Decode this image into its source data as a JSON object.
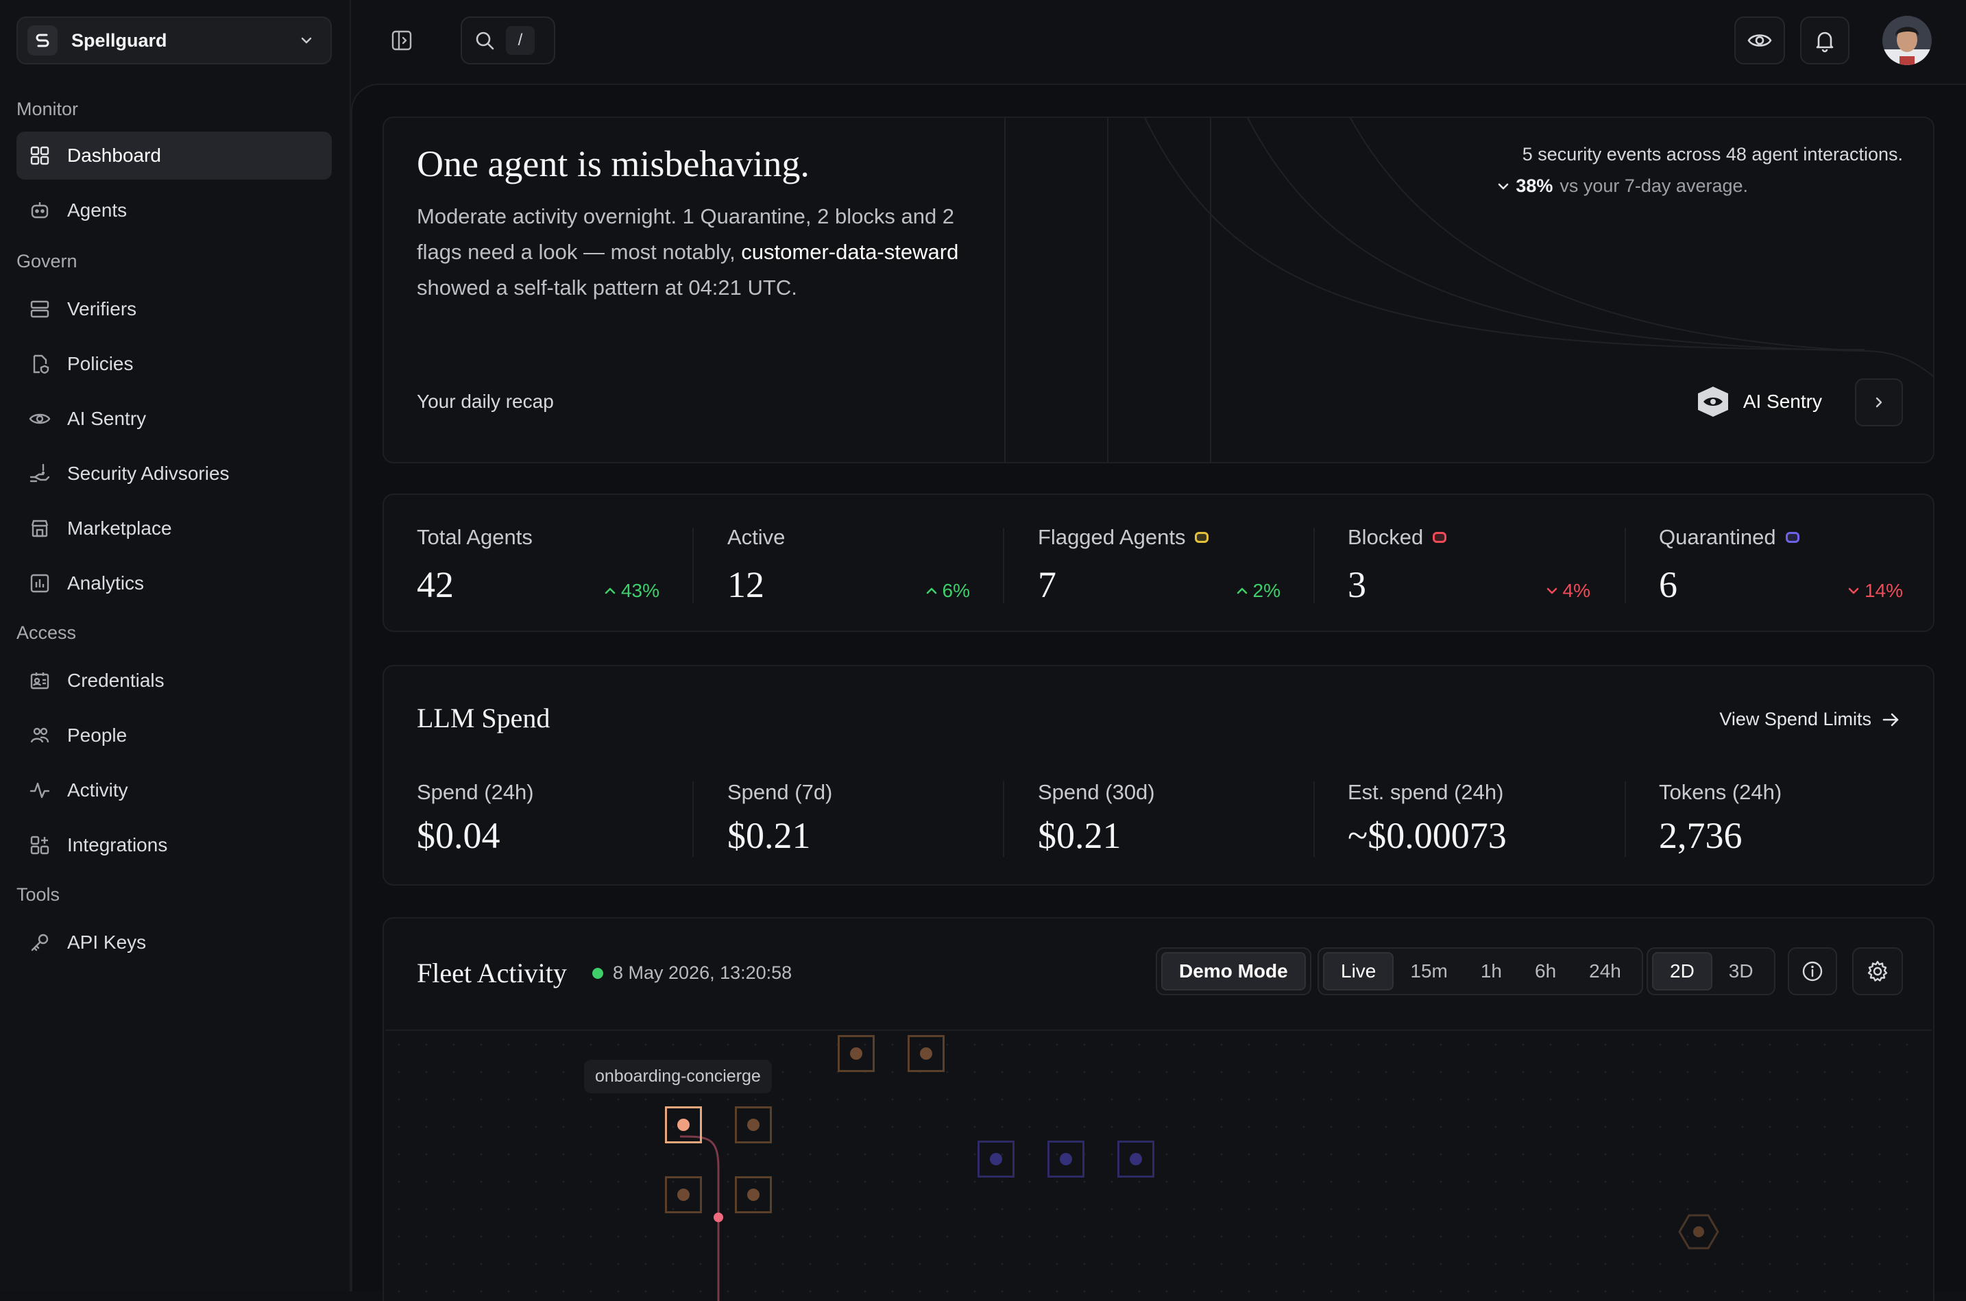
{
  "org": {
    "name": "Spellguard"
  },
  "sidebar": {
    "sections": [
      {
        "title": "Monitor",
        "items": [
          {
            "label": "Dashboard",
            "icon": "grid-icon",
            "active": true
          },
          {
            "label": "Agents",
            "icon": "robot-icon"
          }
        ]
      },
      {
        "title": "Govern",
        "items": [
          {
            "label": "Verifiers",
            "icon": "server-icon"
          },
          {
            "label": "Policies",
            "icon": "document-shield-icon"
          },
          {
            "label": "AI Sentry",
            "icon": "eye-icon"
          },
          {
            "label": "Security Adivsories",
            "icon": "hand-alert-icon"
          },
          {
            "label": "Marketplace",
            "icon": "store-icon"
          },
          {
            "label": "Analytics",
            "icon": "bar-chart-icon"
          }
        ]
      },
      {
        "title": "Access",
        "items": [
          {
            "label": "Credentials",
            "icon": "id-card-icon"
          },
          {
            "label": "People",
            "icon": "people-icon"
          },
          {
            "label": "Activity",
            "icon": "activity-icon"
          },
          {
            "label": "Integrations",
            "icon": "apps-icon"
          }
        ]
      },
      {
        "title": "Tools",
        "items": [
          {
            "label": "API Keys",
            "icon": "key-icon"
          }
        ]
      }
    ]
  },
  "topbar": {
    "search_shortcut": "/"
  },
  "hero": {
    "title": "One agent is misbehaving.",
    "body_pre": "Moderate activity overnight. 1 Quarantine, 2 blocks and 2 flags need a look — most notably, ",
    "body_highlight": "customer-data-steward",
    "body_post": " showed a self-talk pattern at 04:21 UTC.",
    "recap_label": "Your daily recap",
    "summary_line": "5 security events across 48 agent interactions.",
    "delta_pct": "38%",
    "delta_text": "vs your 7-day average.",
    "sentry_label": "AI Sentry"
  },
  "stats": [
    {
      "label": "Total Agents",
      "value": "42",
      "delta": "43%",
      "direction": "up"
    },
    {
      "label": "Active",
      "value": "12",
      "delta": "6%",
      "direction": "up"
    },
    {
      "label": "Flagged Agents",
      "value": "7",
      "delta": "2%",
      "direction": "up",
      "pill_color": "#e3c13a"
    },
    {
      "label": "Blocked",
      "value": "3",
      "delta": "4%",
      "direction": "down",
      "pill_color": "#ef4b57"
    },
    {
      "label": "Quarantined",
      "value": "6",
      "delta": "14%",
      "direction": "down",
      "pill_color": "#6f62e6"
    }
  ],
  "spend": {
    "title": "LLM Spend",
    "link": "View Spend Limits",
    "items": [
      {
        "label": "Spend (24h)",
        "value": "$0.04"
      },
      {
        "label": "Spend (7d)",
        "value": "$0.21"
      },
      {
        "label": "Spend (30d)",
        "value": "$0.21"
      },
      {
        "label": "Est. spend (24h)",
        "value": "~$0.00073"
      },
      {
        "label": "Tokens (24h)",
        "value": "2,736"
      }
    ]
  },
  "fleet": {
    "title": "Fleet Activity",
    "timestamp": "8 May 2026, 13:20:58",
    "demo_mode": "Demo Mode",
    "ranges": [
      "Live",
      "15m",
      "1h",
      "6h",
      "24h"
    ],
    "active_range": "Live",
    "views": [
      "2D",
      "3D"
    ],
    "active_view": "2D",
    "tooltip": "onboarding-concierge"
  },
  "colors": {
    "accent_up": "#3ecf6b",
    "accent_down": "#ef4b57",
    "background": "#101114"
  }
}
